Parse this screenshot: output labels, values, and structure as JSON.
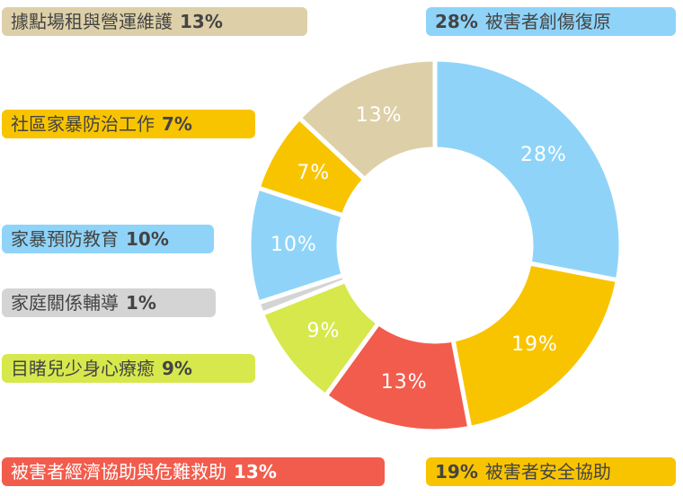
{
  "chart_data": {
    "type": "donut",
    "categories": [
      "被害者創傷復原",
      "被害者安全協助",
      "被害者經濟協助與危難救助",
      "目睹兒少身心療癒",
      "家庭關係輔導",
      "家暴預防教育",
      "社區家暴防治工作",
      "據點場租與營運維護"
    ],
    "values": [
      28,
      19,
      13,
      9,
      1,
      10,
      7,
      13
    ],
    "value_labels": [
      "28%",
      "19%",
      "13%",
      "9%",
      "1%",
      "10%",
      "7%",
      "13%"
    ],
    "colors": [
      "#8fd4f8",
      "#f8c400",
      "#f25c4c",
      "#d6e84c",
      "#d4d4d4",
      "#8fd4f8",
      "#f8c400",
      "#ddd0a8"
    ]
  }
}
